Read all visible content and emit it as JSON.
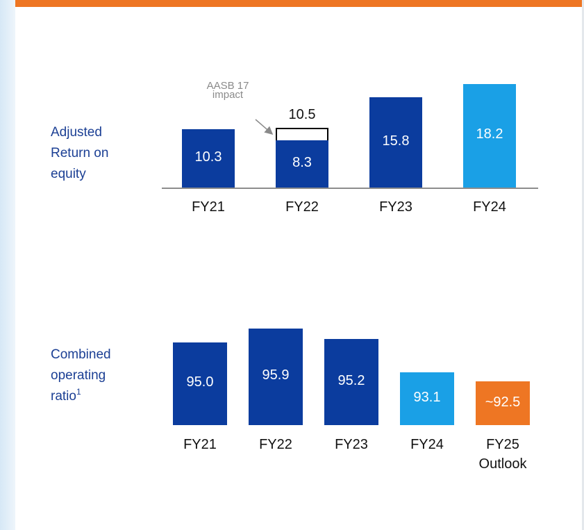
{
  "chart_data": [
    {
      "type": "bar",
      "title": "Adjusted Return on equity",
      "annotation": "AASB 17 impact",
      "categories": [
        "FY21",
        "FY22",
        "FY23",
        "FY24"
      ],
      "series": [
        {
          "values": [
            10.3,
            8.3,
            15.8,
            18.2
          ],
          "colors": [
            "#0b3c9e",
            "#0b3c9e",
            "#0b3c9e",
            "#1aa0e6"
          ]
        },
        {
          "values": [
            null,
            10.5,
            null,
            null
          ],
          "color": "#000000",
          "style": "outline"
        }
      ],
      "ylim": [
        0,
        20
      ]
    },
    {
      "type": "bar",
      "title": "Combined operating ratio",
      "title_footnote": "1",
      "categories": [
        "FY21",
        "FY22",
        "FY23",
        "FY24",
        "FY25 Outlook"
      ],
      "series": [
        {
          "values": [
            95.0,
            95.9,
            95.2,
            93.1,
            92.5
          ],
          "value_labels": [
            "95.0",
            null,
            null,
            null,
            "~92.5"
          ],
          "colors": [
            "#0b3c9e",
            "#0b3c9e",
            "#0b3c9e",
            "#1aa0e6",
            "#ee7623"
          ]
        }
      ],
      "ylim": [
        89.7,
        96.5
      ]
    }
  ]
}
